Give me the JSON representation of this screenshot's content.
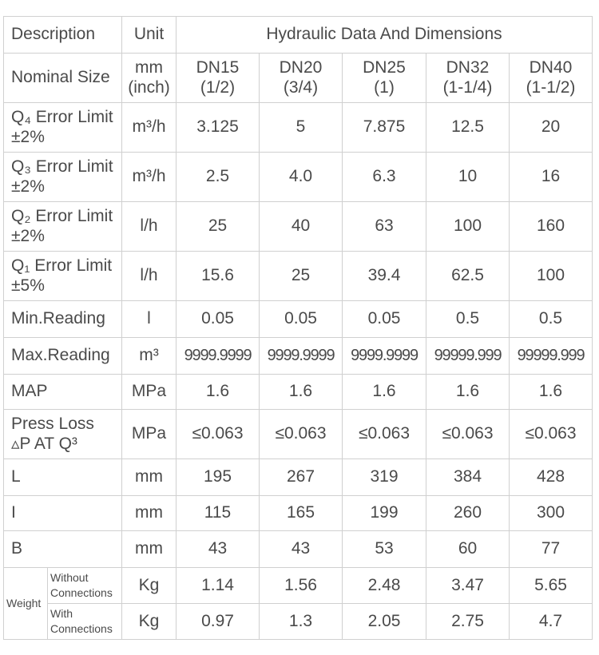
{
  "header": {
    "description": "Description",
    "unit": "Unit",
    "group": "Hydraulic Data And Dimensions"
  },
  "nominal": {
    "label": "Nominal Size",
    "unit_line1": "mm",
    "unit_line2": "(inch)",
    "sizes": [
      {
        "dn": "DN15",
        "inch": "(1/2)"
      },
      {
        "dn": "DN20",
        "inch": "(3/4)"
      },
      {
        "dn": "DN25",
        "inch": "(1)"
      },
      {
        "dn": "DN32",
        "inch": "(1-1/4)"
      },
      {
        "dn": "DN40",
        "inch": "(1-1/2)"
      }
    ]
  },
  "rows": [
    {
      "label_line1": "Q₄ Error Limit",
      "label_line2": "±2%",
      "unit": "m³/h",
      "values": [
        "3.125",
        "5",
        "7.875",
        "12.5",
        "20"
      ]
    },
    {
      "label_line1": "Q₃ Error Limit",
      "label_line2": "±2%",
      "unit": "m³/h",
      "values": [
        "2.5",
        "4.0",
        "6.3",
        "10",
        "16"
      ]
    },
    {
      "label_line1": "Q₂ Error Limit",
      "label_line2": "±2%",
      "unit": "l/h",
      "values": [
        "25",
        "40",
        "63",
        "100",
        "160"
      ]
    },
    {
      "label_line1": "Q₁ Error Limit",
      "label_line2": "±5%",
      "unit": "l/h",
      "values": [
        "15.6",
        "25",
        "39.4",
        "62.5",
        "100"
      ]
    },
    {
      "label_line1": "Min.Reading",
      "label_line2": "",
      "unit": "l",
      "values": [
        "0.05",
        "0.05",
        "0.05",
        "0.5",
        "0.5"
      ]
    },
    {
      "label_line1": "Max.Reading",
      "label_line2": "",
      "unit": "m³",
      "values": [
        "9999.9999",
        "9999.9999",
        "9999.9999",
        "99999.999",
        "99999.999"
      ]
    },
    {
      "label_line1": "MAP",
      "label_line2": "",
      "unit": "MPa",
      "values": [
        "1.6",
        "1.6",
        "1.6",
        "1.6",
        "1.6"
      ]
    },
    {
      "label_line1": "Press Loss",
      "label_line2": "▵P AT Q³",
      "unit": "MPa",
      "values": [
        "≤0.063",
        "≤0.063",
        "≤0.063",
        "≤0.063",
        "≤0.063"
      ]
    },
    {
      "label_line1": "L",
      "label_line2": "",
      "unit": "mm",
      "values": [
        "195",
        "267",
        "319",
        "384",
        "428"
      ]
    },
    {
      "label_line1": "I",
      "label_line2": "",
      "unit": "mm",
      "values": [
        "115",
        "165",
        "199",
        "260",
        "300"
      ]
    },
    {
      "label_line1": "B",
      "label_line2": "",
      "unit": "mm",
      "values": [
        "43",
        "43",
        "53",
        "60",
        "77"
      ]
    }
  ],
  "weight": {
    "label": "Weight",
    "without": {
      "line1": "Without",
      "line2": "Connections",
      "unit": "Kg",
      "values": [
        "1.14",
        "1.56",
        "2.48",
        "3.47",
        "5.65"
      ]
    },
    "with": {
      "line1": "With",
      "line2": "Connections",
      "unit": "Kg",
      "values": [
        "0.97",
        "1.3",
        "2.05",
        "2.75",
        "4.7"
      ]
    }
  }
}
